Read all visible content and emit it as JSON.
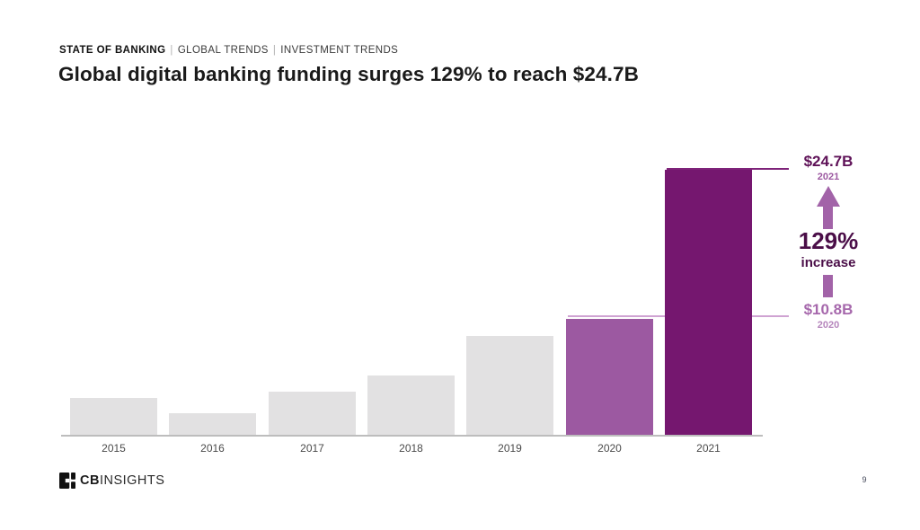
{
  "header": {
    "eyebrow_primary": "STATE OF BANKING",
    "separator": "|",
    "eyebrow_secondary": [
      "GLOBAL TRENDS",
      "INVESTMENT TRENDS"
    ],
    "title": "Global digital banking funding surges 129% to reach $24.7B"
  },
  "chart_data": {
    "type": "bar",
    "title": "Global digital banking funding surges 129% to reach $24.7B",
    "categories": [
      "2015",
      "2016",
      "2017",
      "2018",
      "2019",
      "2020",
      "2021"
    ],
    "values": [
      3.4,
      2.0,
      4.0,
      5.5,
      9.2,
      10.8,
      24.7
    ],
    "unit": "$B",
    "labeled_points": {
      "2020": "$10.8B",
      "2021": "$24.7B"
    },
    "bar_colors": [
      "#E2E1E2",
      "#E2E1E2",
      "#E2E1E2",
      "#E2E1E2",
      "#E2E1E2",
      "#9C59A1",
      "#75176F"
    ],
    "ylim": [
      0,
      26
    ],
    "grid": false,
    "legend": false,
    "xlabel": "",
    "ylabel": ""
  },
  "annotations": {
    "peak_value": "$24.7B",
    "peak_year": "2021",
    "change_value": "129%",
    "change_label": "increase",
    "base_value": "$10.8B",
    "base_year": "2020"
  },
  "footer": {
    "logo_bold": "CB",
    "logo_light": "INSIGHTS",
    "page_number": "9"
  },
  "colors": {
    "highlight_dark": "#75176F",
    "highlight_mid": "#9C59A1",
    "arrow": "#A263A8",
    "dark_text_purple": "#4B0E48",
    "bar_default": "#E2E1E2",
    "axis": "#BDBDBD",
    "connector_light": "#CFA3D2",
    "connector_dark": "#7E2379"
  }
}
